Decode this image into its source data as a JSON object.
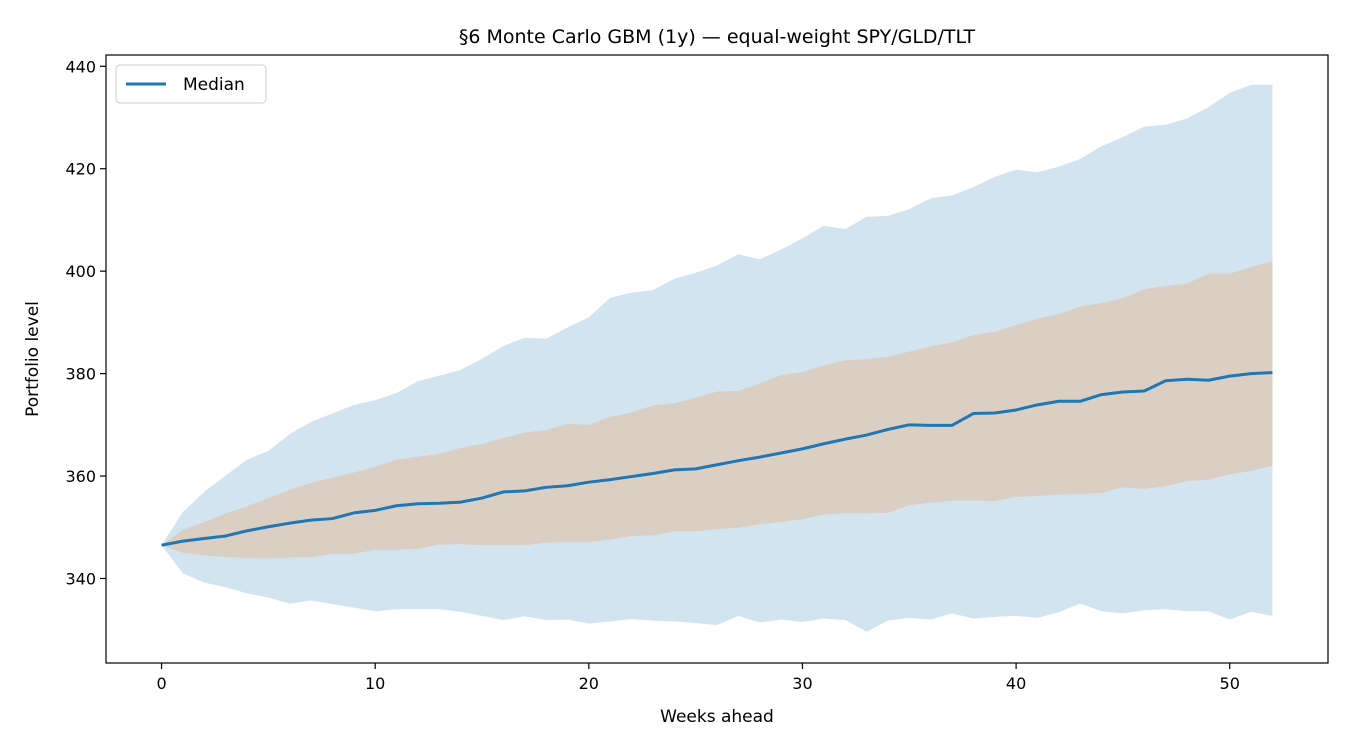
{
  "chart_data": {
    "type": "area",
    "title": "§6 Monte Carlo GBM (1y) — equal-weight SPY/GLD/TLT",
    "xlabel": "Weeks ahead",
    "ylabel": "Portfolio level",
    "xlim": [
      -2.6,
      54.6
    ],
    "ylim": [
      323.5,
      442.2
    ],
    "xticks": [
      0,
      10,
      20,
      30,
      40,
      50
    ],
    "yticks": [
      340,
      360,
      380,
      400,
      420,
      440
    ],
    "grid": false,
    "legend": {
      "placement": "top-left",
      "entries": [
        "Median"
      ]
    },
    "x": [
      0,
      1,
      2,
      3,
      4,
      5,
      6,
      7,
      8,
      9,
      10,
      11,
      12,
      13,
      14,
      15,
      16,
      17,
      18,
      19,
      20,
      21,
      22,
      23,
      24,
      25,
      26,
      27,
      28,
      29,
      30,
      31,
      32,
      33,
      34,
      35,
      36,
      37,
      38,
      39,
      40,
      41,
      42,
      43,
      44,
      45,
      46,
      47,
      48,
      49,
      50,
      51,
      52
    ],
    "series": [
      {
        "name": "Median",
        "color": "#1f77b4",
        "values": [
          346.5,
          347.3,
          347.8,
          348.3,
          349.3,
          350.1,
          350.8,
          351.4,
          351.7,
          352.8,
          353.3,
          354.2,
          354.6,
          354.7,
          354.9,
          355.7,
          356.9,
          357.1,
          357.8,
          358.1,
          358.8,
          359.3,
          359.9,
          360.5,
          361.2,
          361.4,
          362.2,
          363.0,
          363.7,
          364.5,
          365.3,
          366.3,
          367.2,
          368.0,
          369.1,
          370.0,
          369.9,
          369.9,
          372.2,
          372.3,
          372.9,
          373.9,
          374.6,
          374.6,
          375.9,
          376.4,
          376.6,
          378.6,
          378.9,
          378.7,
          379.5,
          380.0,
          380.2
        ]
      }
    ],
    "bands": [
      {
        "color": "#1f77b4",
        "opacity": 0.2,
        "lower": [
          346.5,
          341.0,
          339.2,
          338.3,
          337.1,
          336.3,
          335.1,
          335.7,
          335.0,
          334.3,
          333.6,
          334.0,
          334.0,
          334.0,
          333.5,
          332.7,
          331.9,
          332.6,
          331.9,
          332.0,
          331.2,
          331.6,
          332.1,
          331.8,
          331.6,
          331.3,
          330.9,
          332.7,
          331.4,
          332.0,
          331.5,
          332.2,
          331.9,
          329.6,
          331.8,
          332.3,
          332.0,
          333.2,
          332.2,
          332.5,
          332.7,
          332.3,
          333.4,
          335.1,
          333.6,
          333.2,
          333.8,
          334.0,
          333.6,
          333.6,
          332.0,
          333.5,
          332.7
        ],
        "upper": [
          346.5,
          353.0,
          356.9,
          360.1,
          363.2,
          364.9,
          368.2,
          370.6,
          372.2,
          373.9,
          374.8,
          376.2,
          378.5,
          379.6,
          380.7,
          382.9,
          385.4,
          387.0,
          386.8,
          389.0,
          391.0,
          394.8,
          395.8,
          396.3,
          398.5,
          399.7,
          401.1,
          403.3,
          402.3,
          404.2,
          406.4,
          408.9,
          408.2,
          410.6,
          410.8,
          412.1,
          414.2,
          414.8,
          416.4,
          418.4,
          419.8,
          419.3,
          420.4,
          421.9,
          424.4,
          426.2,
          428.2,
          428.6,
          429.8,
          432.0,
          434.8,
          436.4,
          436.4
        ]
      },
      {
        "color": "#ff7f0e",
        "opacity": 0.2,
        "lower": [
          346.5,
          345.0,
          344.5,
          344.2,
          344.0,
          343.9,
          344.1,
          344.2,
          344.8,
          344.8,
          345.6,
          345.6,
          345.8,
          346.6,
          346.7,
          346.5,
          346.5,
          346.5,
          347.0,
          347.1,
          347.1,
          347.6,
          348.3,
          348.4,
          349.2,
          349.2,
          349.6,
          349.9,
          350.6,
          351.0,
          351.6,
          352.5,
          352.7,
          352.7,
          352.8,
          354.3,
          354.8,
          355.2,
          355.2,
          355.1,
          355.9,
          356.1,
          356.4,
          356.5,
          356.7,
          357.8,
          357.5,
          358.0,
          359.0,
          359.3,
          360.3,
          361.0,
          362.0
        ],
        "upper": [
          346.5,
          349.5,
          351.0,
          352.7,
          354.1,
          355.7,
          357.3,
          358.7,
          359.7,
          360.7,
          361.8,
          363.2,
          363.8,
          364.3,
          365.5,
          366.3,
          367.4,
          368.5,
          369.0,
          370.2,
          370.0,
          371.6,
          372.4,
          373.8,
          374.2,
          375.3,
          376.5,
          376.6,
          378.1,
          379.7,
          380.3,
          381.6,
          382.6,
          382.8,
          383.3,
          384.3,
          385.3,
          386.1,
          387.5,
          388.2,
          389.5,
          390.7,
          391.6,
          393.1,
          393.8,
          394.7,
          396.5,
          397.1,
          397.6,
          399.5,
          399.5,
          400.8,
          402.0
        ]
      }
    ]
  }
}
